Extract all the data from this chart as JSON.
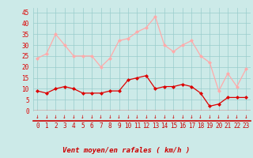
{
  "hours": [
    0,
    1,
    2,
    3,
    4,
    5,
    6,
    7,
    8,
    9,
    10,
    11,
    12,
    13,
    14,
    15,
    16,
    17,
    18,
    19,
    20,
    21,
    22,
    23
  ],
  "vent_moyen": [
    9,
    8,
    10,
    11,
    10,
    8,
    8,
    8,
    9,
    9,
    14,
    15,
    16,
    10,
    11,
    11,
    12,
    11,
    8,
    2,
    3,
    6,
    6,
    6
  ],
  "rafales": [
    24,
    26,
    35,
    30,
    25,
    25,
    25,
    20,
    24,
    32,
    33,
    36,
    38,
    43,
    30,
    27,
    30,
    32,
    25,
    22,
    9,
    17,
    11,
    19
  ],
  "xlabel": "Vent moyen/en rafales ( km/h )",
  "ylim": [
    0,
    47
  ],
  "yticks": [
    0,
    5,
    10,
    15,
    20,
    25,
    30,
    35,
    40,
    45
  ],
  "color_moyen": "#dd0000",
  "color_rafales": "#ffaaaa",
  "bg_color": "#cceae8",
  "grid_color": "#99cccc",
  "line_color": "#cc0000"
}
